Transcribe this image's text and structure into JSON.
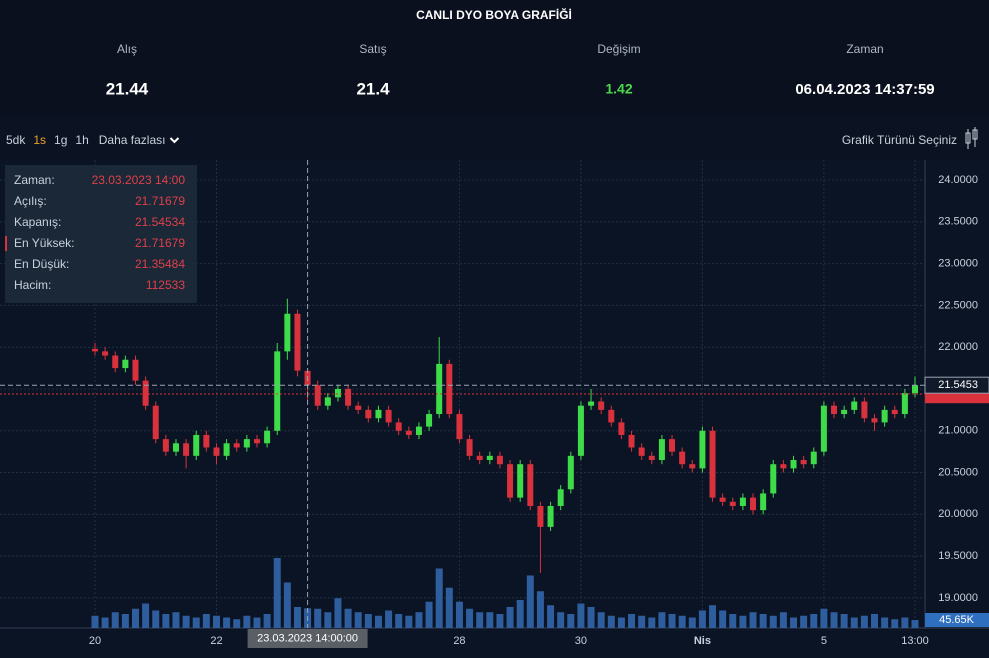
{
  "header": {
    "title": "CANLI DYO BOYA GRAFİĞİ",
    "stats": [
      {
        "label": "Alış",
        "value": 21.44
      },
      {
        "label": "Satış",
        "value": 21.4
      },
      {
        "label": "Değişim",
        "value": 1.42
      },
      {
        "label": "Zaman",
        "value": "06.04.2023 14:37:59"
      }
    ]
  },
  "toolbar": {
    "intervals": [
      "5dk",
      "1s",
      "1g",
      "1h"
    ],
    "active": "1s",
    "more": "Daha fazlası",
    "chart_type": "Grafik Türünü Seçiniz"
  },
  "chart_data": {
    "type": "candlestick",
    "categories": [
      "20",
      null,
      null,
      null,
      null,
      null,
      null,
      null,
      null,
      null,
      null,
      null,
      "22",
      null,
      null,
      null,
      null,
      null,
      null,
      null,
      null,
      null,
      null,
      null,
      null,
      null,
      null,
      null,
      null,
      null,
      null,
      null,
      null,
      null,
      null,
      null,
      "28",
      null,
      null,
      null,
      null,
      null,
      null,
      null,
      null,
      null,
      null,
      null,
      "30",
      null,
      null,
      null,
      null,
      null,
      null,
      null,
      null,
      null,
      null,
      null,
      "Nis",
      null,
      null,
      null,
      null,
      null,
      null,
      null,
      null,
      null,
      null,
      null,
      "5",
      null,
      null,
      null,
      null,
      null,
      null,
      null,
      null,
      "13:00"
    ],
    "open": [
      21.98,
      21.95,
      21.9,
      21.75,
      21.85,
      21.6,
      21.3,
      20.9,
      20.75,
      20.85,
      20.7,
      20.95,
      20.8,
      20.7,
      20.85,
      20.8,
      20.9,
      20.85,
      21.0,
      21.95,
      22.4,
      21.71679,
      21.54534,
      21.3,
      21.4,
      21.5,
      21.3,
      21.25,
      21.15,
      21.25,
      21.1,
      21.0,
      20.95,
      21.05,
      21.2,
      21.8,
      21.2,
      20.9,
      20.7,
      20.65,
      20.7,
      20.6,
      20.2,
      20.6,
      20.1,
      19.85,
      20.1,
      20.3,
      20.7,
      21.3,
      21.35,
      21.25,
      21.1,
      20.95,
      20.8,
      20.7,
      20.65,
      20.9,
      20.75,
      20.6,
      20.55,
      21.0,
      20.2,
      20.15,
      20.1,
      20.2,
      20.05,
      20.25,
      20.6,
      20.55,
      20.65,
      20.6,
      20.75,
      21.3,
      21.2,
      21.25,
      21.35,
      21.15,
      21.1,
      21.25,
      21.2,
      21.45
    ],
    "high": [
      22.05,
      22.0,
      21.95,
      21.9,
      21.9,
      21.65,
      21.35,
      20.95,
      20.9,
      20.9,
      21.0,
      21.0,
      20.85,
      20.9,
      20.9,
      20.95,
      20.95,
      21.05,
      22.05,
      22.58,
      22.45,
      21.71679,
      21.6,
      21.45,
      21.55,
      21.55,
      21.35,
      21.3,
      21.3,
      21.3,
      21.15,
      21.05,
      21.1,
      21.25,
      22.12,
      21.85,
      21.25,
      20.95,
      20.75,
      20.75,
      20.75,
      20.65,
      20.65,
      20.65,
      20.15,
      20.15,
      20.35,
      20.75,
      21.35,
      21.5,
      21.4,
      21.3,
      21.15,
      21.0,
      20.85,
      20.75,
      20.95,
      20.95,
      20.8,
      20.65,
      21.05,
      21.05,
      20.25,
      20.2,
      20.25,
      20.25,
      20.3,
      20.65,
      20.65,
      20.7,
      20.7,
      20.8,
      21.35,
      21.35,
      21.3,
      21.4,
      21.4,
      21.2,
      21.3,
      21.3,
      21.5,
      21.65
    ],
    "low": [
      21.9,
      21.85,
      21.7,
      21.7,
      21.55,
      21.25,
      20.85,
      20.7,
      20.7,
      20.55,
      20.65,
      20.75,
      20.6,
      20.65,
      20.75,
      20.75,
      20.8,
      20.8,
      20.95,
      21.85,
      21.65,
      21.35484,
      21.25,
      21.25,
      21.35,
      21.25,
      21.2,
      21.1,
      21.1,
      21.05,
      20.95,
      20.9,
      20.9,
      21.0,
      21.15,
      21.15,
      20.85,
      20.65,
      20.6,
      20.6,
      20.55,
      20.15,
      20.15,
      20.05,
      19.3,
      19.8,
      20.05,
      20.25,
      20.65,
      21.25,
      21.2,
      21.05,
      20.9,
      20.75,
      20.65,
      20.6,
      20.6,
      20.7,
      20.55,
      20.5,
      20.5,
      20.15,
      20.1,
      20.05,
      20.05,
      20.0,
      20.0,
      20.2,
      20.5,
      20.5,
      20.55,
      20.55,
      20.7,
      21.15,
      21.15,
      21.2,
      21.1,
      21.0,
      21.05,
      21.15,
      21.15,
      21.4
    ],
    "close": [
      21.95,
      21.9,
      21.75,
      21.85,
      21.6,
      21.3,
      20.9,
      20.75,
      20.85,
      20.7,
      20.95,
      20.8,
      20.7,
      20.85,
      20.8,
      20.9,
      20.85,
      21.0,
      21.95,
      22.4,
      21.72,
      21.54534,
      21.3,
      21.4,
      21.5,
      21.3,
      21.25,
      21.15,
      21.25,
      21.1,
      21.0,
      20.95,
      21.05,
      21.2,
      21.8,
      21.2,
      20.9,
      20.7,
      20.65,
      20.7,
      20.6,
      20.2,
      20.6,
      20.1,
      19.85,
      20.1,
      20.3,
      20.7,
      21.3,
      21.35,
      21.25,
      21.1,
      20.95,
      20.8,
      20.7,
      20.65,
      20.9,
      20.75,
      20.6,
      20.55,
      21.0,
      20.2,
      20.15,
      20.1,
      20.2,
      20.05,
      20.25,
      20.6,
      20.55,
      20.65,
      20.6,
      20.75,
      21.3,
      21.2,
      21.25,
      21.35,
      21.15,
      21.1,
      21.25,
      21.2,
      21.45,
      21.5453
    ],
    "volume": [
      70000,
      60000,
      90000,
      80000,
      110000,
      140000,
      100000,
      80000,
      90000,
      70000,
      60000,
      80000,
      70000,
      60000,
      50000,
      70000,
      60000,
      80000,
      400000,
      260000,
      120000,
      112533,
      110000,
      90000,
      170000,
      110000,
      90000,
      80000,
      70000,
      100000,
      80000,
      70000,
      90000,
      150000,
      340000,
      230000,
      150000,
      110000,
      90000,
      90000,
      80000,
      120000,
      160000,
      300000,
      210000,
      130000,
      90000,
      80000,
      140000,
      120000,
      90000,
      70000,
      60000,
      80000,
      70000,
      60000,
      90000,
      80000,
      70000,
      60000,
      100000,
      130000,
      100000,
      80000,
      70000,
      90000,
      80000,
      70000,
      90000,
      60000,
      70000,
      80000,
      110000,
      90000,
      80000,
      60000,
      70000,
      80000,
      60000,
      50000,
      60000,
      45650
    ],
    "last_volume_label": "45.65K",
    "last_price": 21.5453,
    "ylim": [
      18.64,
      24.18
    ],
    "yticks": [
      {
        "value": 19,
        "label": "19.0000"
      },
      {
        "value": 19.5,
        "label": "19.5000"
      },
      {
        "value": 20,
        "label": "20.0000"
      },
      {
        "value": 20.5,
        "label": "20.5000"
      },
      {
        "value": 21,
        "label": "21.0000"
      },
      {
        "value": 21.5,
        "label": "21.5000"
      },
      {
        "value": 22,
        "label": "22.0000"
      },
      {
        "value": 22.5,
        "label": "22.5000"
      },
      {
        "value": 23,
        "label": "23.0000"
      },
      {
        "value": 23.5,
        "label": "23.5000"
      },
      {
        "value": 24,
        "label": "24.0000"
      }
    ],
    "vlim": [
      0,
      800000
    ],
    "grid": true,
    "up_color": "#3fdc4a",
    "down_color": "#d9323d",
    "volume_color": "#2f5e9e",
    "crosshair": {
      "index": 21,
      "label": "23.03.2023  14:00:00"
    },
    "tooltip": {
      "labels": [
        "Zaman:",
        "Açılış:",
        "Kapanış:",
        "En Yüksek:",
        "En Düşük:",
        "Hacim:"
      ],
      "time": "23.03.2023 14:00"
    }
  }
}
